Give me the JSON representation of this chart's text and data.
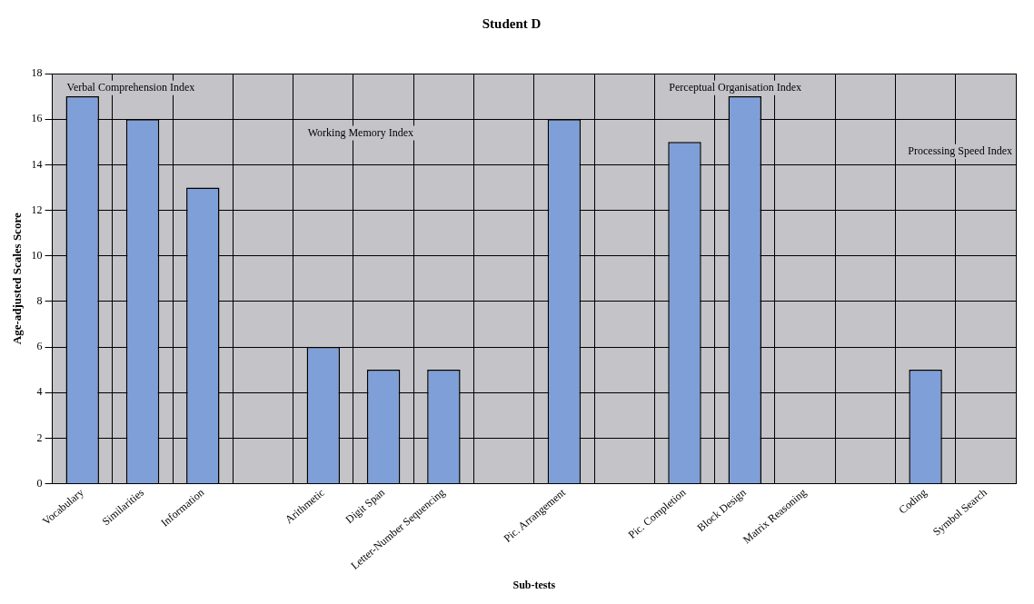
{
  "chart_data": {
    "type": "bar",
    "title": "Student D",
    "xlabel": "Sub-tests",
    "ylabel": "Age-adjusted Scales Score",
    "categories": [
      "Vocabulary",
      "Similarities",
      "Information",
      null,
      "Arithmetic",
      "Digit Span",
      "Letter-Number Sequencing",
      null,
      "Pic. Arrangement",
      null,
      "Pic. Completion",
      "Block Design",
      "Matrix Reasoning",
      null,
      "Coding",
      "Symbol Search"
    ],
    "values": [
      17,
      16,
      13,
      null,
      6,
      5,
      5,
      null,
      16,
      null,
      15,
      17,
      null,
      null,
      5,
      null
    ],
    "color": "#7f9fd8",
    "ylim": [
      0,
      18
    ],
    "yticks": [
      0,
      2,
      4,
      6,
      8,
      10,
      12,
      14,
      16,
      18
    ],
    "grid": true,
    "legend": false,
    "annotations": [
      "Verbal Comprehension Index",
      "Working Memory Index",
      "Perceptual Organisation Index",
      "Processing Speed Index"
    ]
  }
}
